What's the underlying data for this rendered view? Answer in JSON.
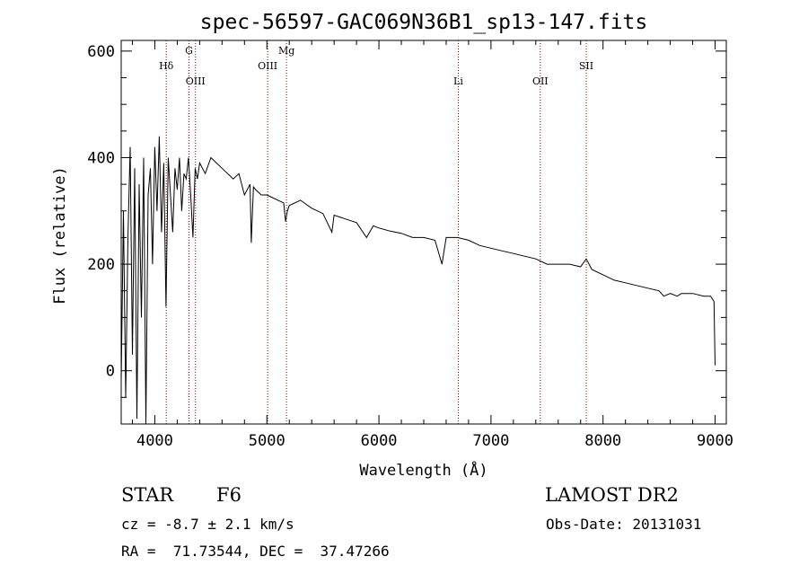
{
  "chart_data": {
    "type": "line",
    "title": "spec-56597-GAC069N36B1_sp13-147.fits",
    "xlabel": "Wavelength (Å)",
    "ylabel": "Flux (relative)",
    "xlim": [
      3700,
      9100
    ],
    "ylim": [
      -100,
      620
    ],
    "x_ticks": [
      4000,
      5000,
      6000,
      7000,
      8000,
      9000
    ],
    "y_ticks": [
      0,
      200,
      400,
      600
    ],
    "grid": false,
    "series": [
      {
        "x": [
          3700,
          3720,
          3740,
          3760,
          3780,
          3800,
          3820,
          3840,
          3860,
          3880,
          3900,
          3920,
          3940,
          3960,
          3980,
          4000,
          4020,
          4040,
          4060,
          4080,
          4100,
          4120,
          4140,
          4160,
          4180,
          4200,
          4220,
          4240,
          4260,
          4280,
          4300,
          4320,
          4340,
          4360,
          4380,
          4400,
          4450,
          4500,
          4550,
          4600,
          4650,
          4700,
          4750,
          4800,
          4850,
          4861,
          4880,
          4900,
          4950,
          5000,
          5050,
          5100,
          5150,
          5167,
          5183,
          5200,
          5300,
          5400,
          5500,
          5580,
          5600,
          5700,
          5800,
          5890,
          5950,
          6000,
          6100,
          6200,
          6300,
          6400,
          6500,
          6563,
          6600,
          6700,
          6800,
          6900,
          7000,
          7100,
          7200,
          7300,
          7400,
          7500,
          7600,
          7700,
          7800,
          7850,
          7900,
          8000,
          8100,
          8200,
          8300,
          8400,
          8498,
          8542,
          8600,
          8662,
          8700,
          8800,
          8900,
          8960,
          8990,
          9000
        ],
        "y": [
          -20,
          300,
          -50,
          250,
          420,
          30,
          380,
          -90,
          350,
          100,
          400,
          -100,
          330,
          380,
          200,
          420,
          300,
          440,
          260,
          390,
          120,
          400,
          330,
          260,
          380,
          340,
          400,
          300,
          370,
          360,
          400,
          330,
          250,
          380,
          360,
          390,
          370,
          400,
          390,
          380,
          370,
          360,
          370,
          330,
          350,
          240,
          345,
          340,
          330,
          330,
          325,
          320,
          315,
          280,
          300,
          310,
          320,
          305,
          295,
          260,
          292,
          285,
          278,
          250,
          272,
          268,
          262,
          258,
          250,
          250,
          245,
          200,
          250,
          250,
          245,
          235,
          230,
          225,
          220,
          215,
          210,
          200,
          200,
          200,
          195,
          210,
          190,
          180,
          170,
          165,
          160,
          155,
          150,
          140,
          145,
          140,
          145,
          145,
          140,
          140,
          130,
          10
        ]
      }
    ],
    "line_markers": [
      {
        "label": "Hδ",
        "x": 4102,
        "row": "upper"
      },
      {
        "label": "G",
        "x": 4305,
        "row": "top"
      },
      {
        "label": "OIII",
        "x": 4363,
        "row": "lower"
      },
      {
        "label": "OIII",
        "x": 5007,
        "row": "upper"
      },
      {
        "label": "Mg",
        "x": 5175,
        "row": "top"
      },
      {
        "label": "Li",
        "x": 6708,
        "row": "lower"
      },
      {
        "label": "OII",
        "x": 7440,
        "row": "lower"
      },
      {
        "label": "SII",
        "x": 7850,
        "row": "upper"
      }
    ]
  },
  "info": {
    "class_label": "STAR",
    "subclass_label": "F6",
    "survey_label": "LAMOST DR2",
    "cz_text": "cz = -8.7 ± 2.1 km/s",
    "obs_date_text": "Obs-Date: 20131031",
    "radec_text": "RA =  71.73544, DEC =  37.47266"
  },
  "colors": {
    "spectrum": "#000000",
    "line_marker": "#8b0000",
    "axis": "#000000"
  }
}
